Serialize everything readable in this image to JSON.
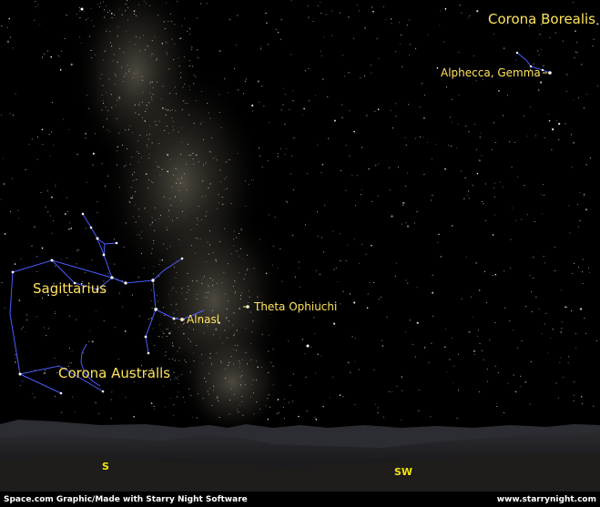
{
  "constellations": {
    "corona_borealis": "Corona Borealis",
    "sagittarius": "Sagittarius",
    "corona_australis": "Corona Australis"
  },
  "stars": {
    "alphecca": "Alphecca, Gemma",
    "theta_ophiuchi": "Theta Ophiuchi",
    "alnasl": "Alnasl"
  },
  "compass": {
    "south": "S",
    "southwest": "SW"
  },
  "credits": {
    "left": "Space.com Graphic/Made with Starry Night Software",
    "right": "www.starrynight.com"
  },
  "colors": {
    "label": "#ffe45a",
    "constellation_lines": "#4a5cff",
    "compass": "#f5e400",
    "sky": "#000000",
    "ground": "#1c1c1e"
  }
}
